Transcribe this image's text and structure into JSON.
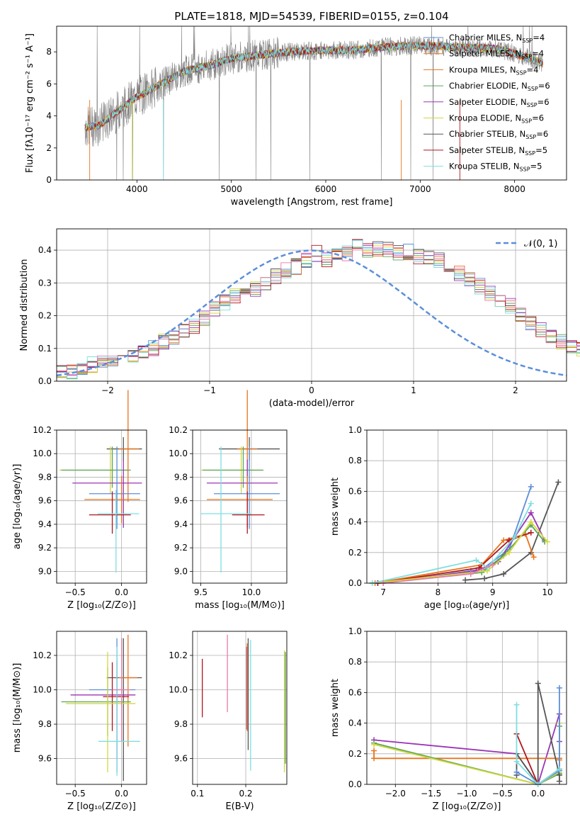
{
  "title": "PLATE=1818, MJD=54539, FIBERID=0155, z=0.104",
  "colors": {
    "Chabrier MILES": "#5b8fd9",
    "Salpeter MILES": "#e8741c",
    "Kroupa MILES": "#e8741c",
    "Chabrier ELODIE": "#5aa55a",
    "Salpeter ELODIE": "#9b35b5",
    "Kroupa ELODIE": "#d4d840",
    "Chabrier STELIB": "#555555",
    "Salpeter STELIB": "#b0151d",
    "Kroupa STELIB": "#7edfe0",
    "pink": "#e77ca8",
    "spectrum": "#808080",
    "gaussian": "#5b8fd9"
  },
  "panels": {
    "spectrum": {
      "xlabel": "wavelength [Angstrom, rest frame]",
      "ylabel": "Flux [fλ10⁻¹⁷ erg cm⁻² s⁻¹ A⁻¹]",
      "xticks": [
        "4000",
        "5000",
        "6000",
        "7000",
        "8000"
      ],
      "yticks": [
        "0",
        "2",
        "4",
        "6",
        "8"
      ],
      "legend": [
        {
          "name": "Chabrier MILES",
          "nssp": "4"
        },
        {
          "name": "Salpeter MILES",
          "nssp": "4"
        },
        {
          "name": "Kroupa MILES",
          "nssp": "4"
        },
        {
          "name": "Chabrier ELODIE",
          "nssp": "6"
        },
        {
          "name": "Salpeter ELODIE",
          "nssp": "6"
        },
        {
          "name": "Kroupa ELODIE",
          "nssp": "6"
        },
        {
          "name": "Chabrier STELIB",
          "nssp": "6"
        },
        {
          "name": "Salpeter STELIB",
          "nssp": "5"
        },
        {
          "name": "Kroupa STELIB",
          "nssp": "5"
        }
      ]
    },
    "residuals": {
      "xlabel": "(data-model)/error",
      "ylabel": "Normed distribution",
      "xticks": [
        "−2",
        "−1",
        "0",
        "1",
        "2"
      ],
      "yticks": [
        "0.0",
        "0.1",
        "0.2",
        "0.3",
        "0.4"
      ],
      "legend": "𝒩(0, 1)"
    },
    "age_Z": {
      "xlabel": "Z [log₁₀(Z/Z⊙)]",
      "ylabel": "age  [log₁₀(age/yr)]",
      "xticks": [
        "−0.5",
        "0.0"
      ],
      "yticks": [
        "9.0",
        "9.2",
        "9.4",
        "9.6",
        "9.8",
        "10.0",
        "10.2"
      ]
    },
    "age_mass": {
      "xlabel": "mass [log₁₀(M/M⊙)]",
      "xticks": [
        "9.5",
        "10.0"
      ],
      "yticks": [
        "9.0",
        "9.2",
        "9.4",
        "9.6",
        "9.8",
        "10.0",
        "10.2"
      ]
    },
    "weight_age": {
      "xlabel": "age  [log₁₀(age/yr)]",
      "ylabel": "mass weight",
      "xticks": [
        "7",
        "8",
        "9",
        "10"
      ],
      "yticks": [
        "0.0",
        "0.2",
        "0.4",
        "0.6",
        "0.8",
        "1.0"
      ]
    },
    "mass_Z": {
      "xlabel": "Z [log₁₀(Z/Z⊙)]",
      "ylabel": "mass [log₁₀(M/M⊙)]",
      "xticks": [
        "−0.5",
        "0.0"
      ],
      "yticks": [
        "9.6",
        "9.8",
        "10.0",
        "10.2"
      ]
    },
    "mass_ebv": {
      "xlabel": "E(B-V)",
      "xticks": [
        "0.1",
        "0.2"
      ],
      "yticks": [
        "9.6",
        "9.8",
        "10.0",
        "10.2"
      ]
    },
    "weight_Z": {
      "xlabel": "Z [log₁₀(Z/Z⊙)]",
      "ylabel": "mass weight",
      "xticks": [
        "−2.0",
        "−1.5",
        "−1.0",
        "−0.5",
        "0.0"
      ],
      "yticks": [
        "0.0",
        "0.2",
        "0.4",
        "0.6",
        "0.8",
        "1.0"
      ]
    }
  },
  "chart_data": [
    {
      "type": "line",
      "title": "PLATE=1818, MJD=54539, FIBERID=0155, z=0.104",
      "xlabel": "wavelength [Angstrom, rest frame]",
      "ylabel": "Flux [fλ10⁻¹⁷ erg cm⁻² s⁻¹ A⁻¹]",
      "xlim": [
        3150,
        8550
      ],
      "ylim": [
        0,
        9.6
      ],
      "continuum": {
        "x": [
          3450,
          3600,
          3800,
          4000,
          4200,
          4500,
          4800,
          5000,
          5300,
          5600,
          6000,
          6300,
          6600,
          7000,
          7400,
          7800,
          8000,
          8300
        ],
        "y": [
          3.3,
          3.4,
          4.3,
          5.2,
          5.8,
          6.8,
          7.2,
          7.6,
          7.8,
          8.0,
          8.1,
          8.1,
          8.3,
          8.4,
          8.3,
          8.2,
          7.9,
          7.3
        ]
      },
      "series": [
        "Chabrier MILES",
        "Salpeter MILES",
        "Kroupa MILES",
        "Chabrier ELODIE",
        "Salpeter ELODIE",
        "Kroupa ELODIE",
        "Chabrier STELIB",
        "Salpeter STELIB",
        "Kroupa STELIB"
      ],
      "grid": false,
      "legend": "right"
    },
    {
      "type": "bar",
      "xlabel": "(data-model)/error",
      "ylabel": "Normed distribution",
      "xlim": [
        -2.5,
        2.5
      ],
      "ylim": [
        0,
        0.465
      ],
      "bin_width": 0.1,
      "base": [
        0.03,
        0.03,
        0.035,
        0.05,
        0.06,
        0.07,
        0.065,
        0.075,
        0.09,
        0.1,
        0.12,
        0.13,
        0.15,
        0.17,
        0.19,
        0.22,
        0.24,
        0.26,
        0.27,
        0.28,
        0.3,
        0.32,
        0.34,
        0.35,
        0.37,
        0.39,
        0.37,
        0.38,
        0.39,
        0.41,
        0.4,
        0.405,
        0.4,
        0.39,
        0.395,
        0.38,
        0.375,
        0.37,
        0.35,
        0.33,
        0.31,
        0.29,
        0.27,
        0.25,
        0.23,
        0.2,
        0.18,
        0.16,
        0.14,
        0.12,
        0.11,
        0.1,
        0.09,
        0.085,
        0.075,
        0.06,
        0.05,
        0.04,
        0.035,
        0.03
      ],
      "gaussian": "𝒩(0, 1)",
      "grid": true,
      "legend": "top-right"
    },
    {
      "type": "scatter",
      "xlabel": "Z [log₁₀(Z/Z⊙)]",
      "ylabel": "age  [log₁₀(age/yr)]",
      "xlim": [
        -0.7,
        0.27
      ],
      "ylim": [
        8.9,
        10.2
      ],
      "points": [
        {
          "x": 0.02,
          "y": 10.04,
          "xerr": [
            0.18,
            0.2
          ],
          "yerr": [
            0.1,
            0.1
          ],
          "c": "#555555"
        },
        {
          "x": 0.07,
          "y": 10.04,
          "xerr": [
            0.1,
            0.12
          ],
          "yerr": [
            0.45,
            0.5
          ],
          "c": "#e8741c"
        },
        {
          "x": -0.12,
          "y": 9.86,
          "xerr": [
            0.55,
            0.2
          ],
          "yerr": [
            0.2,
            0.2
          ],
          "c": "#d4d840"
        },
        {
          "x": -0.1,
          "y": 9.86,
          "xerr": [
            0.55,
            0.2
          ],
          "yerr": [
            0.15,
            0.2
          ],
          "c": "#5aa55a"
        },
        {
          "x": 0.02,
          "y": 9.75,
          "xerr": [
            0.55,
            0.2
          ],
          "yerr": [
            0.38,
            0.2
          ],
          "c": "#9b35b5"
        },
        {
          "x": -0.05,
          "y": 9.66,
          "xerr": [
            0.3,
            0.25
          ],
          "yerr": [
            0.3,
            0.4
          ],
          "c": "#5b8fd9"
        },
        {
          "x": 0.0,
          "y": 9.61,
          "xerr": [
            0.4,
            0.2
          ],
          "yerr": [
            0.2,
            0.2
          ],
          "c": "#e8741c"
        },
        {
          "x": -0.1,
          "y": 9.48,
          "xerr": [
            0.25,
            0.2
          ],
          "yerr": [
            0.16,
            0.2
          ],
          "c": "#b0151d"
        },
        {
          "x": -0.06,
          "y": 9.49,
          "xerr": [
            0.2,
            0.25
          ],
          "yerr": [
            0.5,
            0.2
          ],
          "c": "#7edfe0"
        }
      ]
    },
    {
      "type": "scatter",
      "xlabel": "mass [log₁₀(M/M⊙)]",
      "ylabel": "",
      "xlim": [
        9.42,
        10.35
      ],
      "ylim": [
        8.9,
        10.2
      ],
      "points": [
        {
          "x": 9.98,
          "y": 10.04,
          "xerr": [
            0.3,
            0.3
          ],
          "yerr": [
            0.1,
            0.1
          ],
          "c": "#555555"
        },
        {
          "x": 9.96,
          "y": 10.04,
          "xerr": [
            0.1,
            0.1
          ],
          "yerr": [
            0.45,
            0.5
          ],
          "c": "#e8741c"
        },
        {
          "x": 9.9,
          "y": 9.86,
          "xerr": [
            0.4,
            0.2
          ],
          "yerr": [
            0.2,
            0.2
          ],
          "c": "#d4d840"
        },
        {
          "x": 9.92,
          "y": 9.86,
          "xerr": [
            0.4,
            0.2
          ],
          "yerr": [
            0.15,
            0.2
          ],
          "c": "#5aa55a"
        },
        {
          "x": 9.96,
          "y": 9.75,
          "xerr": [
            0.4,
            0.3
          ],
          "yerr": [
            0.38,
            0.2
          ],
          "c": "#9b35b5"
        },
        {
          "x": 9.98,
          "y": 9.66,
          "xerr": [
            0.35,
            0.3
          ],
          "yerr": [
            0.3,
            0.4
          ],
          "c": "#5b8fd9"
        },
        {
          "x": 9.96,
          "y": 9.61,
          "xerr": [
            0.4,
            0.25
          ],
          "yerr": [
            0.2,
            0.2
          ],
          "c": "#e8741c"
        },
        {
          "x": 9.96,
          "y": 9.48,
          "xerr": [
            0.15,
            0.17
          ],
          "yerr": [
            0.16,
            0.2
          ],
          "c": "#b0151d"
        },
        {
          "x": 9.7,
          "y": 9.49,
          "xerr": [
            0.2,
            0.3
          ],
          "yerr": [
            0.5,
            0.57
          ],
          "c": "#7edfe0"
        }
      ]
    },
    {
      "type": "line",
      "xlabel": "age  [log₁₀(age/yr)]",
      "ylabel": "mass weight",
      "xlim": [
        6.7,
        10.35
      ],
      "ylim": [
        0,
        1.0
      ],
      "series": [
        {
          "c": "#555555",
          "x": [
            8.5,
            8.85,
            9.2,
            9.7,
            10.2
          ],
          "y": [
            0.02,
            0.03,
            0.06,
            0.2,
            0.66
          ]
        },
        {
          "c": "#5b8fd9",
          "x": [
            7.0,
            8.6,
            8.8,
            9.3,
            9.7
          ],
          "y": [
            0.0,
            0.08,
            0.09,
            0.22,
            0.63
          ]
        },
        {
          "c": "#e8741c",
          "x": [
            6.85,
            8.8,
            9.2,
            9.6,
            9.75
          ],
          "y": [
            0.0,
            0.12,
            0.28,
            0.32,
            0.17
          ]
        },
        {
          "c": "#9b35b5",
          "x": [
            6.9,
            8.7,
            9.1,
            9.7,
            9.95
          ],
          "y": [
            0.0,
            0.08,
            0.14,
            0.46,
            0.28
          ]
        },
        {
          "c": "#b0151d",
          "x": [
            6.9,
            8.75,
            9.3,
            9.7
          ],
          "y": [
            0.0,
            0.1,
            0.28,
            0.33
          ]
        },
        {
          "c": "#5aa55a",
          "x": [
            6.8,
            8.8,
            9.2,
            9.7,
            9.95
          ],
          "y": [
            0.0,
            0.07,
            0.18,
            0.38,
            0.27
          ]
        },
        {
          "c": "#d4d840",
          "x": [
            6.8,
            8.9,
            9.3,
            9.7,
            10.0
          ],
          "y": [
            0.0,
            0.08,
            0.2,
            0.4,
            0.27
          ]
        },
        {
          "c": "#7edfe0",
          "x": [
            6.8,
            8.7,
            8.9,
            9.4,
            9.7
          ],
          "y": [
            0.0,
            0.15,
            0.1,
            0.3,
            0.52
          ]
        },
        {
          "c": "#e77ca8",
          "x": [
            7.0,
            8.6,
            9.0
          ],
          "y": [
            0.0,
            0.06,
            0.12
          ]
        }
      ],
      "grid": true
    },
    {
      "type": "scatter",
      "xlabel": "Z [log₁₀(Z/Z⊙)]",
      "ylabel": "mass [log₁₀(M/M⊙)]",
      "xlim": [
        -0.7,
        0.27
      ],
      "ylim": [
        9.45,
        10.34
      ],
      "points": [
        {
          "x": 0.02,
          "y": 10.07,
          "xerr": [
            0.18,
            0.2
          ],
          "yerr": [
            0.6,
            0.23
          ],
          "c": "#555555"
        },
        {
          "x": 0.07,
          "y": 10.07,
          "xerr": [
            0.1,
            0.1
          ],
          "yerr": [
            0.4,
            0.25
          ],
          "c": "#e8741c"
        },
        {
          "x": -0.05,
          "y": 10.0,
          "xerr": [
            0.3,
            0.2
          ],
          "yerr": [
            0.4,
            0.3
          ],
          "c": "#5b8fd9"
        },
        {
          "x": -0.05,
          "y": 9.97,
          "xerr": [
            0.5,
            0.2
          ],
          "yerr": [
            0.45,
            0.2
          ],
          "c": "#9b35b5"
        },
        {
          "x": -0.1,
          "y": 9.96,
          "xerr": [
            0.1,
            0.18
          ],
          "yerr": [
            0.2,
            0.2
          ],
          "c": "#b0151d"
        },
        {
          "x": -0.15,
          "y": 9.93,
          "xerr": [
            0.5,
            0.25
          ],
          "yerr": [
            0.2,
            0.2
          ],
          "c": "#5aa55a"
        },
        {
          "x": -0.15,
          "y": 9.92,
          "xerr": [
            0.45,
            0.3
          ],
          "yerr": [
            0.4,
            0.3
          ],
          "c": "#d4d840"
        },
        {
          "x": -0.05,
          "y": 9.7,
          "xerr": [
            0.2,
            0.25
          ],
          "yerr": [
            0.2,
            0.55
          ],
          "c": "#7edfe0"
        },
        {
          "x": 0.0,
          "y": 10.0,
          "xerr": [
            0.1,
            0.1
          ],
          "yerr": [
            0.3,
            0.3
          ],
          "c": "#e77ca8"
        }
      ]
    },
    {
      "type": "scatter",
      "xlabel": "E(B-V)",
      "ylabel": "",
      "xlim": [
        0.09,
        0.285
      ],
      "ylim": [
        9.45,
        10.34
      ],
      "points": [
        {
          "x": 0.11,
          "y": 10.0,
          "yerr": [
            0.16,
            0.18
          ],
          "c": "#b0151d"
        },
        {
          "x": 0.162,
          "y": 10.1,
          "yerr": [
            0.23,
            0.22
          ],
          "c": "#e77ca8"
        },
        {
          "x": 0.202,
          "y": 10.0,
          "yerr": [
            0.23,
            0.25
          ],
          "c": "#9b35b5"
        },
        {
          "x": 0.203,
          "y": 9.99,
          "yerr": [
            0.23,
            0.28
          ],
          "c": "#e8741c"
        },
        {
          "x": 0.205,
          "y": 10.0,
          "yerr": [
            0.35,
            0.3
          ],
          "c": "#555555"
        },
        {
          "x": 0.21,
          "y": 9.93,
          "yerr": [
            0.4,
            0.36
          ],
          "c": "#7edfe0"
        },
        {
          "x": 0.28,
          "y": 9.88,
          "yerr": [
            0.36,
            0.35
          ],
          "c": "#d4d840"
        },
        {
          "x": 0.282,
          "y": 9.87,
          "yerr": [
            0.3,
            0.35
          ],
          "c": "#5aa55a"
        }
      ]
    },
    {
      "type": "line",
      "xlabel": "Z [log₁₀(Z/Z⊙)]",
      "ylabel": "mass weight",
      "xlim": [
        -2.4,
        0.4
      ],
      "ylim": [
        0,
        1.0
      ],
      "series": [
        {
          "c": "#9b35b5",
          "x": [
            -2.3,
            -0.3,
            0.0,
            0.3,
            0.3
          ],
          "y": [
            0.29,
            0.2,
            0.0,
            0.46,
            0.28
          ]
        },
        {
          "c": "#e8741c",
          "x": [
            -2.3,
            -2.3,
            0.3,
            0.3
          ],
          "y": [
            0.22,
            0.17,
            0.17,
            0.16
          ]
        },
        {
          "c": "#5aa55a",
          "x": [
            -2.3,
            0.0,
            0.3,
            0.3
          ],
          "y": [
            0.27,
            0.0,
            0.07,
            0.38
          ]
        },
        {
          "c": "#d4d840",
          "x": [
            -2.3,
            0.0,
            0.3,
            0.3
          ],
          "y": [
            0.26,
            0.0,
            0.08,
            0.4
          ]
        },
        {
          "c": "#555555",
          "x": [
            -0.3,
            -0.3,
            0.0,
            0.0,
            0.3,
            0.3
          ],
          "y": [
            0.06,
            0.2,
            0.0,
            0.66,
            0.06,
            0.02
          ]
        },
        {
          "c": "#b0151d",
          "x": [
            -0.3,
            0.0,
            0.3
          ],
          "y": [
            0.33,
            0.0,
            0.1
          ]
        },
        {
          "c": "#5b8fd9",
          "x": [
            -0.3,
            0.0,
            0.3,
            0.3
          ],
          "y": [
            0.08,
            0.0,
            0.09,
            0.63
          ]
        },
        {
          "c": "#7edfe0",
          "x": [
            -0.3,
            -0.3,
            0.0,
            0.3
          ],
          "y": [
            0.52,
            0.15,
            0.0,
            0.1
          ]
        }
      ],
      "grid": true
    }
  ]
}
